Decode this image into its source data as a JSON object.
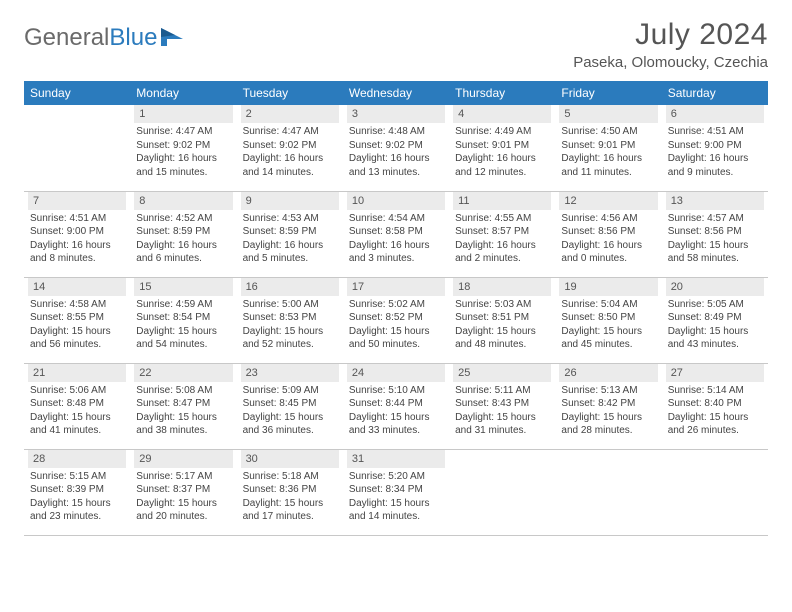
{
  "logo": {
    "text1": "General",
    "text2": "Blue"
  },
  "title": "July 2024",
  "location": "Paseka, Olomoucky, Czechia",
  "colors": {
    "header_bg": "#2b7bbd",
    "header_text": "#ffffff",
    "daynum_bg": "#ebebeb",
    "text": "#444444",
    "border": "#c8c8c8"
  },
  "weekdays": [
    "Sunday",
    "Monday",
    "Tuesday",
    "Wednesday",
    "Thursday",
    "Friday",
    "Saturday"
  ],
  "weeks": [
    [
      {
        "n": "",
        "sr": "",
        "ss": "",
        "dl1": "",
        "dl2": "",
        "empty": true
      },
      {
        "n": "1",
        "sr": "Sunrise: 4:47 AM",
        "ss": "Sunset: 9:02 PM",
        "dl1": "Daylight: 16 hours",
        "dl2": "and 15 minutes."
      },
      {
        "n": "2",
        "sr": "Sunrise: 4:47 AM",
        "ss": "Sunset: 9:02 PM",
        "dl1": "Daylight: 16 hours",
        "dl2": "and 14 minutes."
      },
      {
        "n": "3",
        "sr": "Sunrise: 4:48 AM",
        "ss": "Sunset: 9:02 PM",
        "dl1": "Daylight: 16 hours",
        "dl2": "and 13 minutes."
      },
      {
        "n": "4",
        "sr": "Sunrise: 4:49 AM",
        "ss": "Sunset: 9:01 PM",
        "dl1": "Daylight: 16 hours",
        "dl2": "and 12 minutes."
      },
      {
        "n": "5",
        "sr": "Sunrise: 4:50 AM",
        "ss": "Sunset: 9:01 PM",
        "dl1": "Daylight: 16 hours",
        "dl2": "and 11 minutes."
      },
      {
        "n": "6",
        "sr": "Sunrise: 4:51 AM",
        "ss": "Sunset: 9:00 PM",
        "dl1": "Daylight: 16 hours",
        "dl2": "and 9 minutes."
      }
    ],
    [
      {
        "n": "7",
        "sr": "Sunrise: 4:51 AM",
        "ss": "Sunset: 9:00 PM",
        "dl1": "Daylight: 16 hours",
        "dl2": "and 8 minutes."
      },
      {
        "n": "8",
        "sr": "Sunrise: 4:52 AM",
        "ss": "Sunset: 8:59 PM",
        "dl1": "Daylight: 16 hours",
        "dl2": "and 6 minutes."
      },
      {
        "n": "9",
        "sr": "Sunrise: 4:53 AM",
        "ss": "Sunset: 8:59 PM",
        "dl1": "Daylight: 16 hours",
        "dl2": "and 5 minutes."
      },
      {
        "n": "10",
        "sr": "Sunrise: 4:54 AM",
        "ss": "Sunset: 8:58 PM",
        "dl1": "Daylight: 16 hours",
        "dl2": "and 3 minutes."
      },
      {
        "n": "11",
        "sr": "Sunrise: 4:55 AM",
        "ss": "Sunset: 8:57 PM",
        "dl1": "Daylight: 16 hours",
        "dl2": "and 2 minutes."
      },
      {
        "n": "12",
        "sr": "Sunrise: 4:56 AM",
        "ss": "Sunset: 8:56 PM",
        "dl1": "Daylight: 16 hours",
        "dl2": "and 0 minutes."
      },
      {
        "n": "13",
        "sr": "Sunrise: 4:57 AM",
        "ss": "Sunset: 8:56 PM",
        "dl1": "Daylight: 15 hours",
        "dl2": "and 58 minutes."
      }
    ],
    [
      {
        "n": "14",
        "sr": "Sunrise: 4:58 AM",
        "ss": "Sunset: 8:55 PM",
        "dl1": "Daylight: 15 hours",
        "dl2": "and 56 minutes."
      },
      {
        "n": "15",
        "sr": "Sunrise: 4:59 AM",
        "ss": "Sunset: 8:54 PM",
        "dl1": "Daylight: 15 hours",
        "dl2": "and 54 minutes."
      },
      {
        "n": "16",
        "sr": "Sunrise: 5:00 AM",
        "ss": "Sunset: 8:53 PM",
        "dl1": "Daylight: 15 hours",
        "dl2": "and 52 minutes."
      },
      {
        "n": "17",
        "sr": "Sunrise: 5:02 AM",
        "ss": "Sunset: 8:52 PM",
        "dl1": "Daylight: 15 hours",
        "dl2": "and 50 minutes."
      },
      {
        "n": "18",
        "sr": "Sunrise: 5:03 AM",
        "ss": "Sunset: 8:51 PM",
        "dl1": "Daylight: 15 hours",
        "dl2": "and 48 minutes."
      },
      {
        "n": "19",
        "sr": "Sunrise: 5:04 AM",
        "ss": "Sunset: 8:50 PM",
        "dl1": "Daylight: 15 hours",
        "dl2": "and 45 minutes."
      },
      {
        "n": "20",
        "sr": "Sunrise: 5:05 AM",
        "ss": "Sunset: 8:49 PM",
        "dl1": "Daylight: 15 hours",
        "dl2": "and 43 minutes."
      }
    ],
    [
      {
        "n": "21",
        "sr": "Sunrise: 5:06 AM",
        "ss": "Sunset: 8:48 PM",
        "dl1": "Daylight: 15 hours",
        "dl2": "and 41 minutes."
      },
      {
        "n": "22",
        "sr": "Sunrise: 5:08 AM",
        "ss": "Sunset: 8:47 PM",
        "dl1": "Daylight: 15 hours",
        "dl2": "and 38 minutes."
      },
      {
        "n": "23",
        "sr": "Sunrise: 5:09 AM",
        "ss": "Sunset: 8:45 PM",
        "dl1": "Daylight: 15 hours",
        "dl2": "and 36 minutes."
      },
      {
        "n": "24",
        "sr": "Sunrise: 5:10 AM",
        "ss": "Sunset: 8:44 PM",
        "dl1": "Daylight: 15 hours",
        "dl2": "and 33 minutes."
      },
      {
        "n": "25",
        "sr": "Sunrise: 5:11 AM",
        "ss": "Sunset: 8:43 PM",
        "dl1": "Daylight: 15 hours",
        "dl2": "and 31 minutes."
      },
      {
        "n": "26",
        "sr": "Sunrise: 5:13 AM",
        "ss": "Sunset: 8:42 PM",
        "dl1": "Daylight: 15 hours",
        "dl2": "and 28 minutes."
      },
      {
        "n": "27",
        "sr": "Sunrise: 5:14 AM",
        "ss": "Sunset: 8:40 PM",
        "dl1": "Daylight: 15 hours",
        "dl2": "and 26 minutes."
      }
    ],
    [
      {
        "n": "28",
        "sr": "Sunrise: 5:15 AM",
        "ss": "Sunset: 8:39 PM",
        "dl1": "Daylight: 15 hours",
        "dl2": "and 23 minutes."
      },
      {
        "n": "29",
        "sr": "Sunrise: 5:17 AM",
        "ss": "Sunset: 8:37 PM",
        "dl1": "Daylight: 15 hours",
        "dl2": "and 20 minutes."
      },
      {
        "n": "30",
        "sr": "Sunrise: 5:18 AM",
        "ss": "Sunset: 8:36 PM",
        "dl1": "Daylight: 15 hours",
        "dl2": "and 17 minutes."
      },
      {
        "n": "31",
        "sr": "Sunrise: 5:20 AM",
        "ss": "Sunset: 8:34 PM",
        "dl1": "Daylight: 15 hours",
        "dl2": "and 14 minutes."
      },
      {
        "n": "",
        "sr": "",
        "ss": "",
        "dl1": "",
        "dl2": "",
        "empty": true
      },
      {
        "n": "",
        "sr": "",
        "ss": "",
        "dl1": "",
        "dl2": "",
        "empty": true
      },
      {
        "n": "",
        "sr": "",
        "ss": "",
        "dl1": "",
        "dl2": "",
        "empty": true
      }
    ]
  ]
}
